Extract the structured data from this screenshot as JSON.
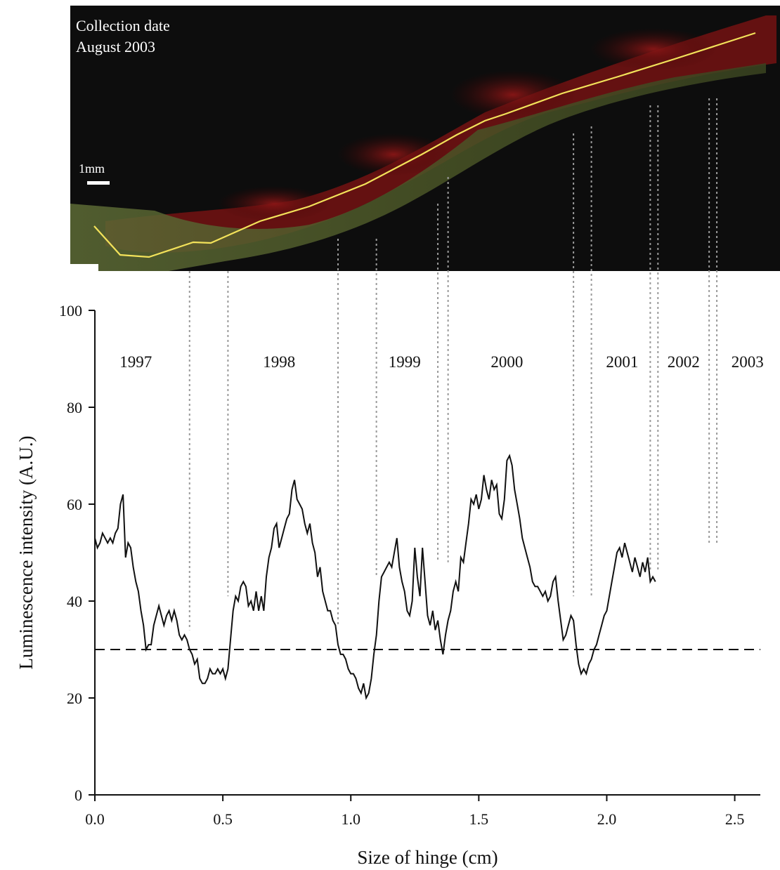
{
  "photo": {
    "caption_line1": "Collection date",
    "caption_line2": "August 2003",
    "scale_bar_label": "1mm",
    "colors": {
      "background": "#0d0d0d",
      "tissue_red": "#7a1414",
      "tissue_green": "#4d5a2a",
      "trace_line": "#f3e25a"
    }
  },
  "chart_data": {
    "type": "line",
    "xlabel": "Size of hinge (cm)",
    "ylabel": "Luminescence intensity (A.U.)",
    "xlim": [
      0,
      2.6
    ],
    "ylim": [
      0,
      100
    ],
    "x_ticks": [
      "0.0",
      "0.5",
      "1.0",
      "1.5",
      "2.0",
      "2.5"
    ],
    "y_ticks": [
      "0",
      "20",
      "40",
      "60",
      "80",
      "100"
    ],
    "threshold": 30,
    "year_labels": [
      {
        "label": "1997",
        "x": 0.16
      },
      {
        "label": "1998",
        "x": 0.72
      },
      {
        "label": "1999",
        "x": 1.21
      },
      {
        "label": "2000",
        "x": 1.61
      },
      {
        "label": "2001",
        "x": 2.06
      },
      {
        "label": "2002",
        "x": 2.3
      },
      {
        "label": "2003",
        "x": 2.55
      }
    ],
    "year_boundaries": [
      {
        "x": 0.37,
        "y_bottom": 34
      },
      {
        "x": 0.52,
        "y_bottom": 41
      },
      {
        "x": 0.95,
        "y_bottom": 35
      },
      {
        "x": 1.1,
        "y_bottom": 45
      },
      {
        "x": 1.34,
        "y_bottom": 48
      },
      {
        "x": 1.38,
        "y_bottom": 48
      },
      {
        "x": 1.87,
        "y_bottom": 41
      },
      {
        "x": 1.94,
        "y_bottom": 41
      },
      {
        "x": 2.17,
        "y_bottom": 46
      },
      {
        "x": 2.2,
        "y_bottom": 46
      },
      {
        "x": 2.4,
        "y_bottom": 52
      },
      {
        "x": 2.43,
        "y_bottom": 52
      }
    ],
    "series": [
      {
        "color": "#111111",
        "points": [
          [
            0.0,
            53
          ],
          [
            0.01,
            51
          ],
          [
            0.02,
            52
          ],
          [
            0.03,
            54
          ],
          [
            0.04,
            53
          ],
          [
            0.05,
            52
          ],
          [
            0.06,
            53
          ],
          [
            0.07,
            52
          ],
          [
            0.08,
            54
          ],
          [
            0.09,
            55
          ],
          [
            0.1,
            60
          ],
          [
            0.11,
            62
          ],
          [
            0.12,
            49
          ],
          [
            0.13,
            52
          ],
          [
            0.14,
            51
          ],
          [
            0.15,
            47
          ],
          [
            0.16,
            44
          ],
          [
            0.17,
            42
          ],
          [
            0.18,
            38
          ],
          [
            0.19,
            35
          ],
          [
            0.2,
            30
          ],
          [
            0.21,
            31
          ],
          [
            0.22,
            31
          ],
          [
            0.23,
            35
          ],
          [
            0.24,
            37
          ],
          [
            0.25,
            39
          ],
          [
            0.26,
            37
          ],
          [
            0.27,
            35
          ],
          [
            0.28,
            37
          ],
          [
            0.29,
            38
          ],
          [
            0.3,
            36
          ],
          [
            0.31,
            38
          ],
          [
            0.32,
            36
          ],
          [
            0.33,
            33
          ],
          [
            0.34,
            32
          ],
          [
            0.35,
            33
          ],
          [
            0.36,
            32
          ],
          [
            0.37,
            30
          ],
          [
            0.38,
            29
          ],
          [
            0.39,
            27
          ],
          [
            0.4,
            28
          ],
          [
            0.41,
            24
          ],
          [
            0.42,
            23
          ],
          [
            0.43,
            23
          ],
          [
            0.44,
            24
          ],
          [
            0.45,
            26
          ],
          [
            0.46,
            25
          ],
          [
            0.47,
            25
          ],
          [
            0.48,
            26
          ],
          [
            0.49,
            25
          ],
          [
            0.5,
            26
          ],
          [
            0.51,
            24
          ],
          [
            0.52,
            26
          ],
          [
            0.53,
            32
          ],
          [
            0.54,
            38
          ],
          [
            0.55,
            41
          ],
          [
            0.56,
            40
          ],
          [
            0.57,
            43
          ],
          [
            0.58,
            44
          ],
          [
            0.59,
            43
          ],
          [
            0.6,
            39
          ],
          [
            0.61,
            40
          ],
          [
            0.62,
            38
          ],
          [
            0.63,
            42
          ],
          [
            0.64,
            38
          ],
          [
            0.65,
            41
          ],
          [
            0.66,
            38
          ],
          [
            0.67,
            45
          ],
          [
            0.68,
            49
          ],
          [
            0.69,
            51
          ],
          [
            0.7,
            55
          ],
          [
            0.71,
            56
          ],
          [
            0.72,
            51
          ],
          [
            0.73,
            53
          ],
          [
            0.74,
            55
          ],
          [
            0.75,
            57
          ],
          [
            0.76,
            58
          ],
          [
            0.77,
            63
          ],
          [
            0.78,
            65
          ],
          [
            0.79,
            61
          ],
          [
            0.8,
            60
          ],
          [
            0.81,
            59
          ],
          [
            0.82,
            56
          ],
          [
            0.83,
            54
          ],
          [
            0.84,
            56
          ],
          [
            0.85,
            52
          ],
          [
            0.86,
            50
          ],
          [
            0.87,
            45
          ],
          [
            0.88,
            47
          ],
          [
            0.89,
            42
          ],
          [
            0.9,
            40
          ],
          [
            0.91,
            38
          ],
          [
            0.92,
            38
          ],
          [
            0.93,
            36
          ],
          [
            0.94,
            35
          ],
          [
            0.95,
            31
          ],
          [
            0.96,
            29
          ],
          [
            0.97,
            29
          ],
          [
            0.98,
            28
          ],
          [
            0.99,
            26
          ],
          [
            1.0,
            25
          ],
          [
            1.01,
            25
          ],
          [
            1.02,
            24
          ],
          [
            1.03,
            22
          ],
          [
            1.04,
            21
          ],
          [
            1.05,
            23
          ],
          [
            1.06,
            20
          ],
          [
            1.07,
            21
          ],
          [
            1.08,
            24
          ],
          [
            1.09,
            29
          ],
          [
            1.1,
            33
          ],
          [
            1.11,
            40
          ],
          [
            1.12,
            45
          ],
          [
            1.13,
            46
          ],
          [
            1.14,
            47
          ],
          [
            1.15,
            48
          ],
          [
            1.16,
            47
          ],
          [
            1.17,
            50
          ],
          [
            1.18,
            53
          ],
          [
            1.19,
            47
          ],
          [
            1.2,
            44
          ],
          [
            1.21,
            42
          ],
          [
            1.22,
            38
          ],
          [
            1.23,
            37
          ],
          [
            1.24,
            40
          ],
          [
            1.25,
            51
          ],
          [
            1.26,
            45
          ],
          [
            1.27,
            41
          ],
          [
            1.28,
            51
          ],
          [
            1.29,
            44
          ],
          [
            1.3,
            37
          ],
          [
            1.31,
            35
          ],
          [
            1.32,
            38
          ],
          [
            1.33,
            34
          ],
          [
            1.34,
            36
          ],
          [
            1.35,
            32
          ],
          [
            1.36,
            29
          ],
          [
            1.37,
            33
          ],
          [
            1.38,
            36
          ],
          [
            1.39,
            38
          ],
          [
            1.4,
            42
          ],
          [
            1.41,
            44
          ],
          [
            1.42,
            42
          ],
          [
            1.43,
            49
          ],
          [
            1.44,
            48
          ],
          [
            1.45,
            52
          ],
          [
            1.46,
            56
          ],
          [
            1.47,
            61
          ],
          [
            1.48,
            60
          ],
          [
            1.49,
            62
          ],
          [
            1.5,
            59
          ],
          [
            1.51,
            61
          ],
          [
            1.52,
            66
          ],
          [
            1.53,
            63
          ],
          [
            1.54,
            61
          ],
          [
            1.55,
            65
          ],
          [
            1.56,
            63
          ],
          [
            1.57,
            64
          ],
          [
            1.58,
            58
          ],
          [
            1.59,
            57
          ],
          [
            1.6,
            61
          ],
          [
            1.61,
            69
          ],
          [
            1.62,
            70
          ],
          [
            1.63,
            68
          ],
          [
            1.64,
            63
          ],
          [
            1.65,
            60
          ],
          [
            1.66,
            57
          ],
          [
            1.67,
            53
          ],
          [
            1.68,
            51
          ],
          [
            1.69,
            49
          ],
          [
            1.7,
            47
          ],
          [
            1.71,
            44
          ],
          [
            1.72,
            43
          ],
          [
            1.73,
            43
          ],
          [
            1.74,
            42
          ],
          [
            1.75,
            41
          ],
          [
            1.76,
            42
          ],
          [
            1.77,
            40
          ],
          [
            1.78,
            41
          ],
          [
            1.79,
            44
          ],
          [
            1.8,
            45
          ],
          [
            1.81,
            40
          ],
          [
            1.82,
            36
          ],
          [
            1.83,
            32
          ],
          [
            1.84,
            33
          ],
          [
            1.85,
            35
          ],
          [
            1.86,
            37
          ],
          [
            1.87,
            36
          ],
          [
            1.88,
            31
          ],
          [
            1.89,
            27
          ],
          [
            1.9,
            25
          ],
          [
            1.91,
            26
          ],
          [
            1.92,
            25
          ],
          [
            1.93,
            27
          ],
          [
            1.94,
            28
          ],
          [
            1.95,
            30
          ],
          [
            1.96,
            31
          ],
          [
            1.97,
            33
          ],
          [
            1.98,
            35
          ],
          [
            1.99,
            37
          ],
          [
            2.0,
            38
          ],
          [
            2.01,
            41
          ],
          [
            2.02,
            44
          ],
          [
            2.03,
            47
          ],
          [
            2.04,
            50
          ],
          [
            2.05,
            51
          ],
          [
            2.06,
            49
          ],
          [
            2.07,
            52
          ],
          [
            2.08,
            50
          ],
          [
            2.09,
            48
          ],
          [
            2.1,
            46
          ],
          [
            2.11,
            49
          ],
          [
            2.12,
            47
          ],
          [
            2.13,
            45
          ],
          [
            2.14,
            48
          ],
          [
            2.15,
            46
          ],
          [
            2.16,
            49
          ],
          [
            2.17,
            44
          ],
          [
            2.18,
            45
          ],
          [
            2.19,
            44
          ]
        ]
      }
    ]
  }
}
